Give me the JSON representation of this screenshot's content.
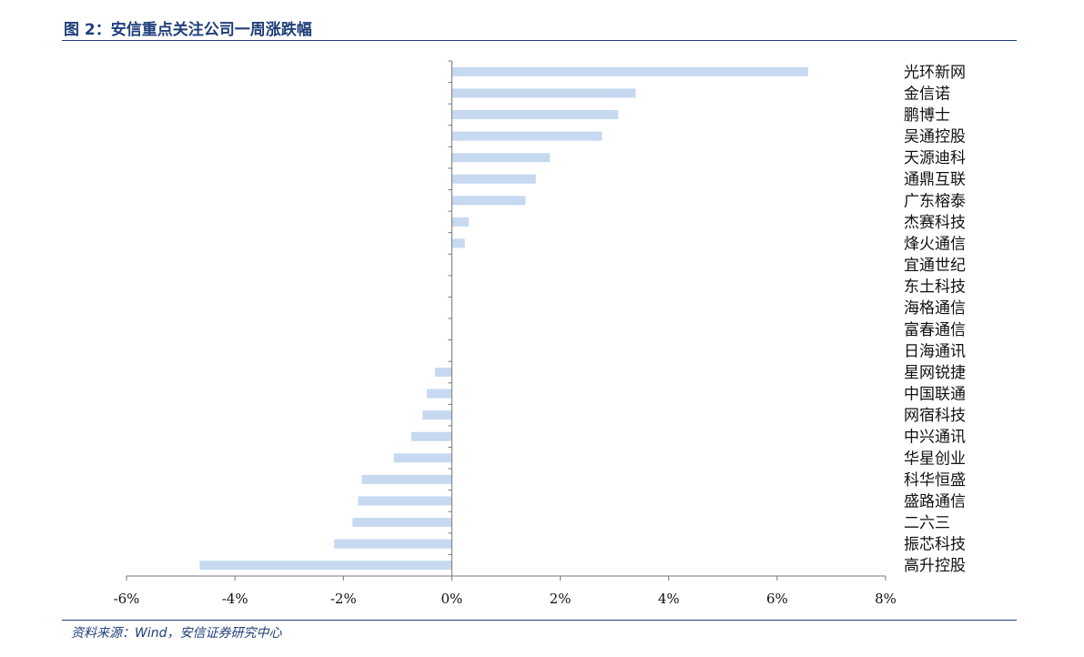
{
  "header": {
    "figure_title": "图 2：安信重点关注公司一周涨跌幅"
  },
  "footer": {
    "source": "资料来源：Wind，安信证券研究中心"
  },
  "chart_data": {
    "type": "bar",
    "orientation": "horizontal",
    "categories": [
      "光环新网",
      "金信诺",
      "鹏博士",
      "吴通控股",
      "天源迪科",
      "通鼎互联",
      "广东榕泰",
      "杰赛科技",
      "烽火通信",
      "宜通世纪",
      "东土科技",
      "海格通信",
      "富春通信",
      "日海通讯",
      "星网锐捷",
      "中国联通",
      "网宿科技",
      "中兴通讯",
      "华星创业",
      "科华恒盛",
      "盛路通信",
      "二六三",
      "振芯科技",
      "高升控股"
    ],
    "values": [
      6.57,
      3.39,
      3.07,
      2.77,
      1.81,
      1.55,
      1.36,
      0.31,
      0.24,
      0,
      0,
      0,
      0,
      0,
      -0.31,
      -0.46,
      -0.54,
      -0.75,
      -1.07,
      -1.66,
      -1.73,
      -1.83,
      -2.17,
      -4.65
    ],
    "xlim": [
      -6,
      8
    ],
    "xticks": [
      -6,
      -4,
      -2,
      0,
      2,
      4,
      6,
      8
    ],
    "xtick_labels": [
      "-6%",
      "-4%",
      "-2%",
      "0%",
      "2%",
      "4%",
      "6%",
      "8%"
    ],
    "bar_color": "#c6d9f1",
    "grid": false,
    "label_position": "right"
  }
}
